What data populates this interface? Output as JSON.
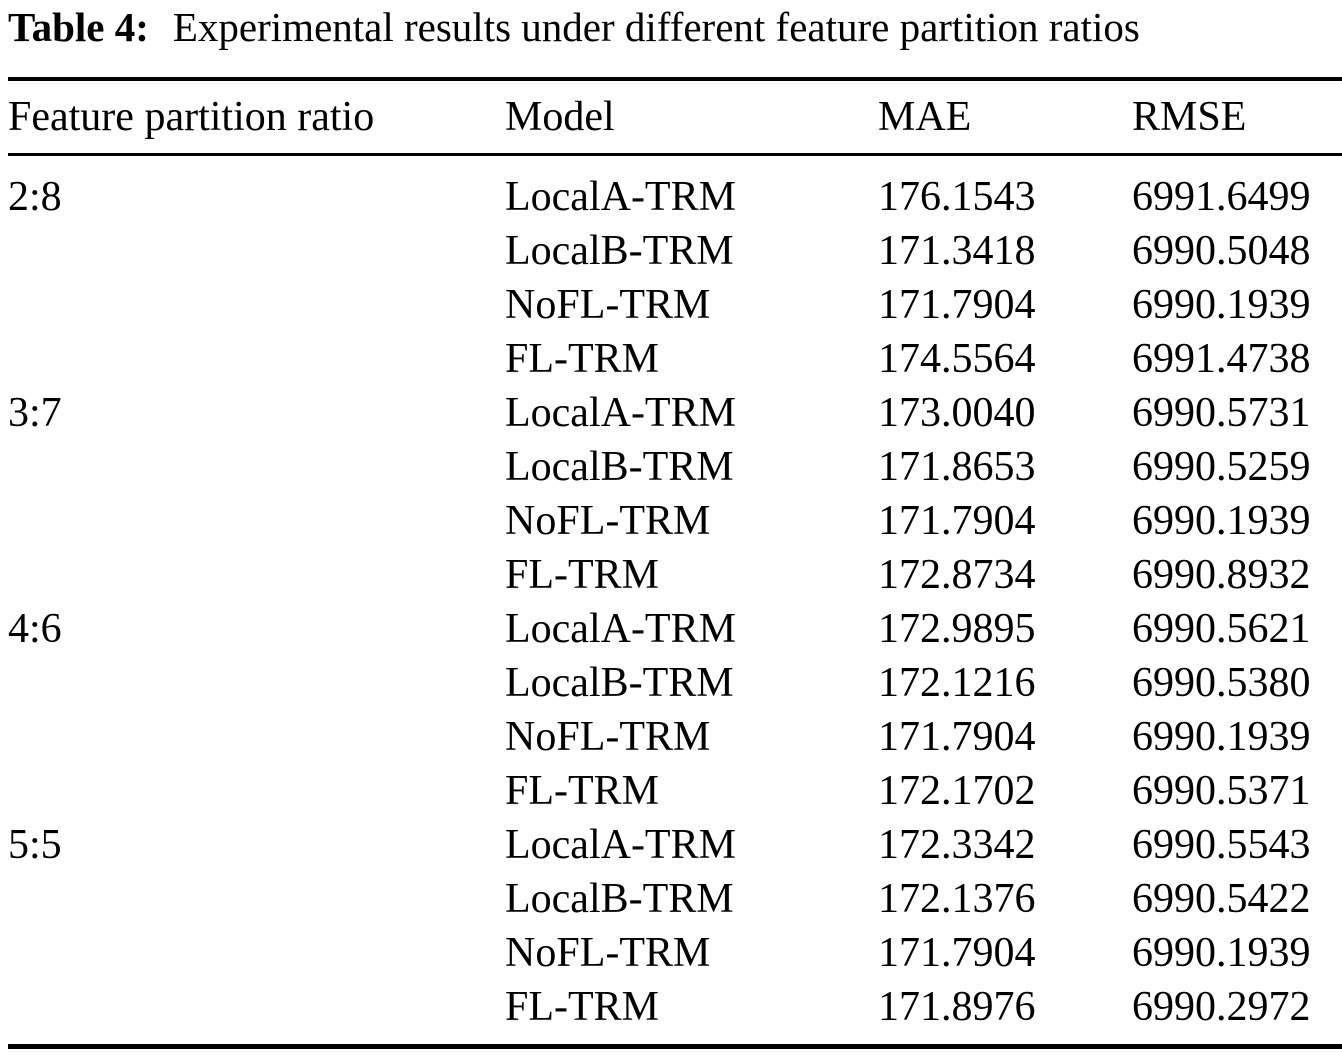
{
  "caption": {
    "label": "Table 4:",
    "text": "Experimental results under different feature partition ratios"
  },
  "columns": [
    "Feature partition ratio",
    "Model",
    "MAE",
    "RMSE"
  ],
  "groups": [
    {
      "ratio": "2:8",
      "rows": [
        {
          "model": "LocalA-TRM",
          "mae": "176.1543",
          "rmse": "6991.6499"
        },
        {
          "model": "LocalB-TRM",
          "mae": "171.3418",
          "rmse": "6990.5048"
        },
        {
          "model": "NoFL-TRM",
          "mae": "171.7904",
          "rmse": "6990.1939"
        },
        {
          "model": "FL-TRM",
          "mae": "174.5564",
          "rmse": "6991.4738"
        }
      ]
    },
    {
      "ratio": "3:7",
      "rows": [
        {
          "model": "LocalA-TRM",
          "mae": "173.0040",
          "rmse": "6990.5731"
        },
        {
          "model": "LocalB-TRM",
          "mae": "171.8653",
          "rmse": "6990.5259"
        },
        {
          "model": "NoFL-TRM",
          "mae": "171.7904",
          "rmse": "6990.1939"
        },
        {
          "model": "FL-TRM",
          "mae": "172.8734",
          "rmse": "6990.8932"
        }
      ]
    },
    {
      "ratio": "4:6",
      "rows": [
        {
          "model": "LocalA-TRM",
          "mae": "172.9895",
          "rmse": "6990.5621"
        },
        {
          "model": "LocalB-TRM",
          "mae": "172.1216",
          "rmse": "6990.5380"
        },
        {
          "model": "NoFL-TRM",
          "mae": "171.7904",
          "rmse": "6990.1939"
        },
        {
          "model": "FL-TRM",
          "mae": "172.1702",
          "rmse": "6990.5371"
        }
      ]
    },
    {
      "ratio": "5:5",
      "rows": [
        {
          "model": "LocalA-TRM",
          "mae": "172.3342",
          "rmse": "6990.5543"
        },
        {
          "model": "LocalB-TRM",
          "mae": "172.1376",
          "rmse": "6990.5422"
        },
        {
          "model": "NoFL-TRM",
          "mae": "171.7904",
          "rmse": "6990.1939"
        },
        {
          "model": "FL-TRM",
          "mae": "171.8976",
          "rmse": "6990.2972"
        }
      ]
    }
  ],
  "colors": {
    "text": "#000000",
    "background": "#ffffff",
    "rule": "#000000"
  }
}
